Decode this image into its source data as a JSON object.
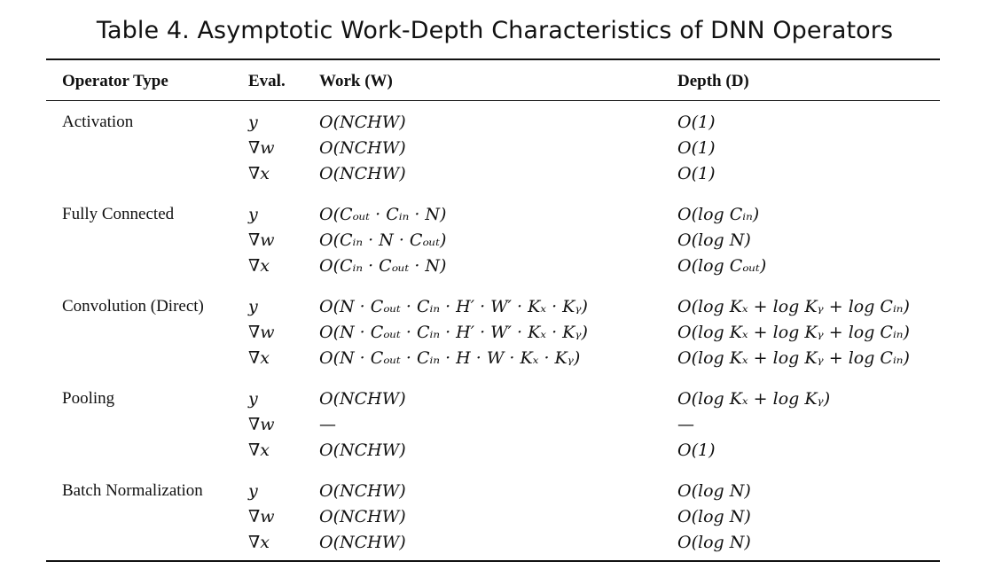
{
  "caption": "Table 4.  Asymptotic Work-Depth Characteristics of DNN Operators",
  "headers": {
    "operator_type": "Operator Type",
    "eval": "Eval.",
    "work": "Work (W)",
    "depth": "Depth (D)"
  },
  "groups": [
    {
      "operator": "Activation",
      "rows": [
        {
          "eval": "y",
          "work": "O(NCHW)",
          "depth": "O(1)"
        },
        {
          "eval": "∇w",
          "work": "O(NCHW)",
          "depth": "O(1)"
        },
        {
          "eval": "∇x",
          "work": "O(NCHW)",
          "depth": "O(1)"
        }
      ]
    },
    {
      "operator": "Fully Connected",
      "rows": [
        {
          "eval": "y",
          "work": "O(Cₒᵤₜ · Cᵢₙ · N)",
          "depth": "O(log Cᵢₙ)"
        },
        {
          "eval": "∇w",
          "work": "O(Cᵢₙ · N · Cₒᵤₜ)",
          "depth": "O(log N)"
        },
        {
          "eval": "∇x",
          "work": "O(Cᵢₙ · Cₒᵤₜ · N)",
          "depth": "O(log Cₒᵤₜ)"
        }
      ]
    },
    {
      "operator": "Convolution (Direct)",
      "rows": [
        {
          "eval": "y",
          "work": "O(N · Cₒᵤₜ · Cᵢₙ · H′ · W′ · Kₓ · Kᵧ)",
          "depth": "O(log Kₓ + log Kᵧ + log Cᵢₙ)"
        },
        {
          "eval": "∇w",
          "work": "O(N · Cₒᵤₜ · Cᵢₙ · H′ · W′ · Kₓ · Kᵧ)",
          "depth": "O(log Kₓ + log Kᵧ + log Cᵢₙ)"
        },
        {
          "eval": "∇x",
          "work": "O(N · Cₒᵤₜ · Cᵢₙ · H · W · Kₓ · Kᵧ)",
          "depth": "O(log Kₓ + log Kᵧ + log Cᵢₙ)"
        }
      ]
    },
    {
      "operator": "Pooling",
      "rows": [
        {
          "eval": "y",
          "work": "O(NCHW)",
          "depth": "O(log Kₓ + log Kᵧ)"
        },
        {
          "eval": "∇w",
          "work": "—",
          "depth": "—"
        },
        {
          "eval": "∇x",
          "work": "O(NCHW)",
          "depth": "O(1)"
        }
      ]
    },
    {
      "operator": "Batch Normalization",
      "rows": [
        {
          "eval": "y",
          "work": "O(NCHW)",
          "depth": "O(log N)"
        },
        {
          "eval": "∇w",
          "work": "O(NCHW)",
          "depth": "O(log N)"
        },
        {
          "eval": "∇x",
          "work": "O(NCHW)",
          "depth": "O(log N)"
        }
      ]
    }
  ]
}
